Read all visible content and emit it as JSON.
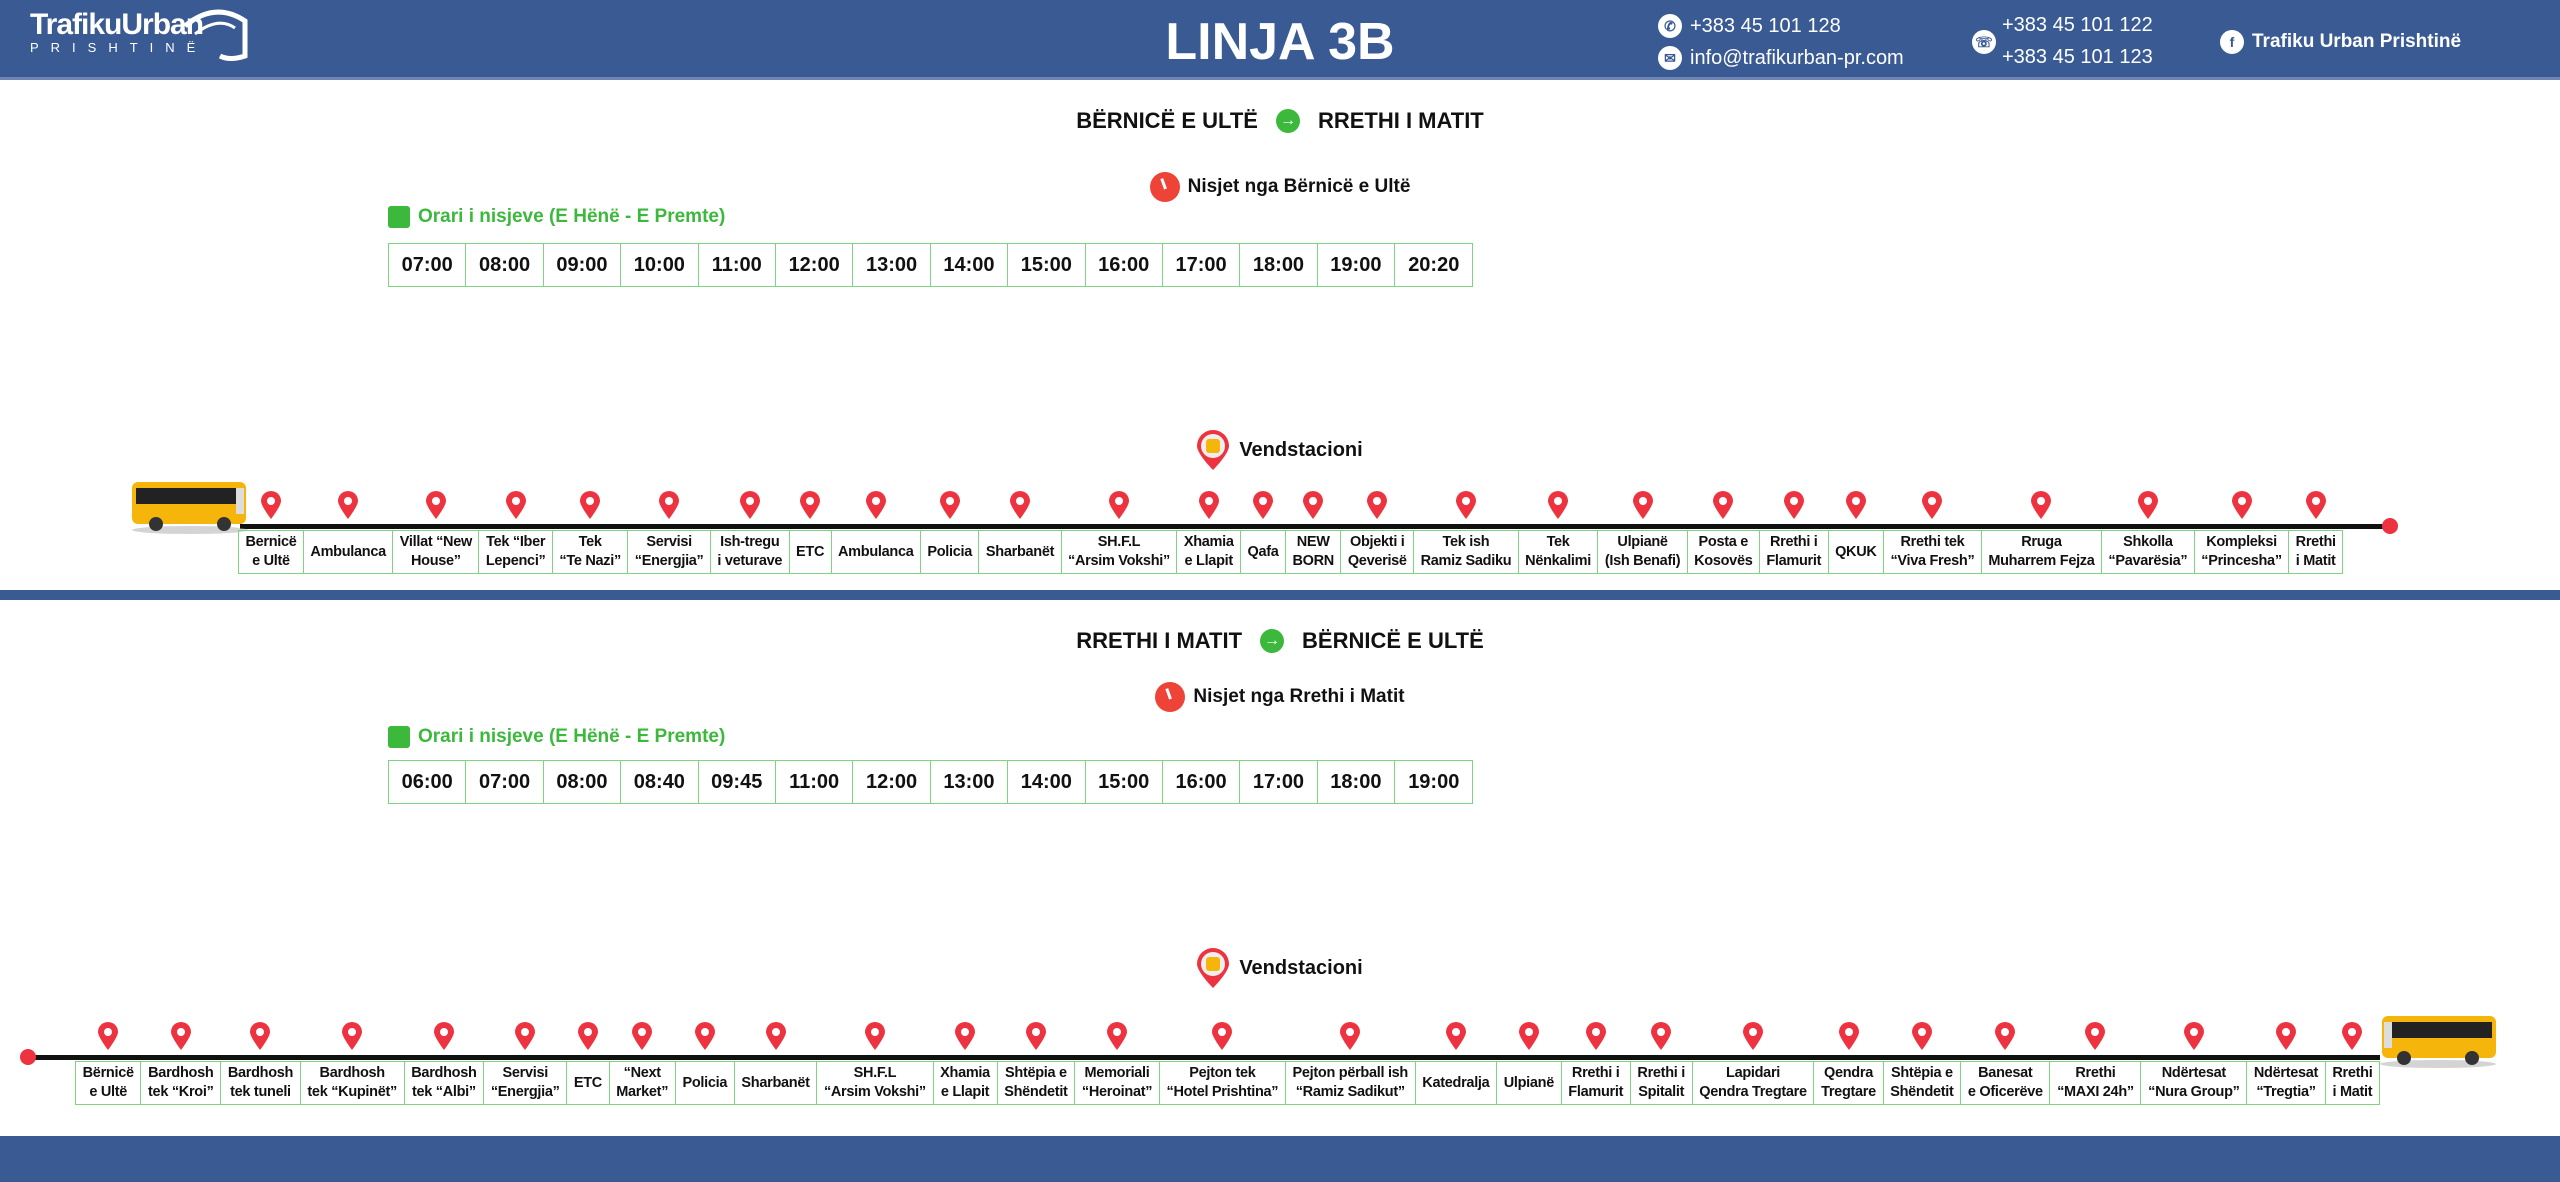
{
  "header": {
    "logo_brand": "TrafikuUrban",
    "logo_city": "PRISHTINË",
    "title": "LINJA 3B",
    "phone": "+383 45 101 128",
    "email": "info@trafikurban-pr.com",
    "viber_1": "+383 45 101 122",
    "viber_2": "+383 45 101 123",
    "facebook": "Trafiku Urban Prishtinë"
  },
  "colors": {
    "header_bg": "#3a5a93",
    "accent_green": "#3cb83c",
    "pin_red": "#ee3340"
  },
  "directions": [
    {
      "from": "BËRNICË E ULTË",
      "to": "RRETHI I MATIT",
      "departures_label": "Nisjet nga Bërnicë e Ultë",
      "schedule_label": "Orari i nisjeve (E Hënë - E Premte)",
      "times": [
        "07:00",
        "08:00",
        "09:00",
        "10:00",
        "11:00",
        "12:00",
        "13:00",
        "14:00",
        "15:00",
        "16:00",
        "17:00",
        "18:00",
        "19:00",
        "20:20"
      ],
      "stops_label": "Vendstacioni",
      "stops": [
        "Bernicë\ne Ultë",
        "Ambulanca",
        "Villat “New\nHouse”",
        "Tek “Iber\nLepenci”",
        "Tek\n“Te Nazi”",
        "Servisi\n“Energjia”",
        "Ish-tregu\ni veturave",
        "ETC",
        "Ambulanca",
        "Policia",
        "Sharbanët",
        "SH.F.L\n“Arsim Vokshi”",
        "Xhamia\ne Llapit",
        "Qafa",
        "NEW\nBORN",
        "Objekti i\nQeverisë",
        "Tek ish\nRamiz Sadiku",
        "Tek\nNënkalimi",
        "Ulpianë\n(Ish Benafi)",
        "Posta e\nKosovës",
        "Rrethi i\nFlamurit",
        "QKUK",
        "Rrethi tek\n“Viva Fresh”",
        "Rruga\nMuharrem Fejza",
        "Shkolla\n“Pavarësia”",
        "Kompleksi\n“Princesha”",
        "Rrethi\ni Matit"
      ]
    },
    {
      "from": "RRETHI I MATIT",
      "to": "BËRNICË E ULTË",
      "departures_label": "Nisjet nga Rrethi i Matit",
      "schedule_label": "Orari i nisjeve (E Hënë - E Premte)",
      "times": [
        "06:00",
        "07:00",
        "08:00",
        "08:40",
        "09:45",
        "11:00",
        "12:00",
        "13:00",
        "14:00",
        "15:00",
        "16:00",
        "17:00",
        "18:00",
        "19:00"
      ],
      "stops_label": "Vendstacioni",
      "stops": [
        "Bërnicë\ne Ultë",
        "Bardhosh\ntek “Kroi”",
        "Bardhosh\ntek tuneli",
        "Bardhosh\ntek “Kupinët”",
        "Bardhosh\ntek “Albi”",
        "Servisi\n“Energjia”",
        "ETC",
        "“Next\nMarket”",
        "Policia",
        "Sharbanët",
        "SH.F.L\n“Arsim Vokshi”",
        "Xhamia\ne Llapit",
        "Shtëpia e\nShëndetit",
        "Memoriali\n“Heroinat”",
        "Pejton tek\n“Hotel Prishtina”",
        "Pejton përball ish\n“Ramiz Sadikut”",
        "Katedralja",
        "Ulpianë",
        "Rrethi i\nFlamurit",
        "Rrethi i\nSpitalit",
        "Lapidari\nQendra Tregtare",
        "Qendra\nTregtare",
        "Shtëpia e\nShëndetit",
        "Banesat\ne Oficerëve",
        "Rrethi\n“MAXI 24h”",
        "Ndërtesat\n“Nura Group”",
        "Ndërtesat\n“Tregtia”",
        "Rrethi\ni Matit"
      ]
    }
  ]
}
